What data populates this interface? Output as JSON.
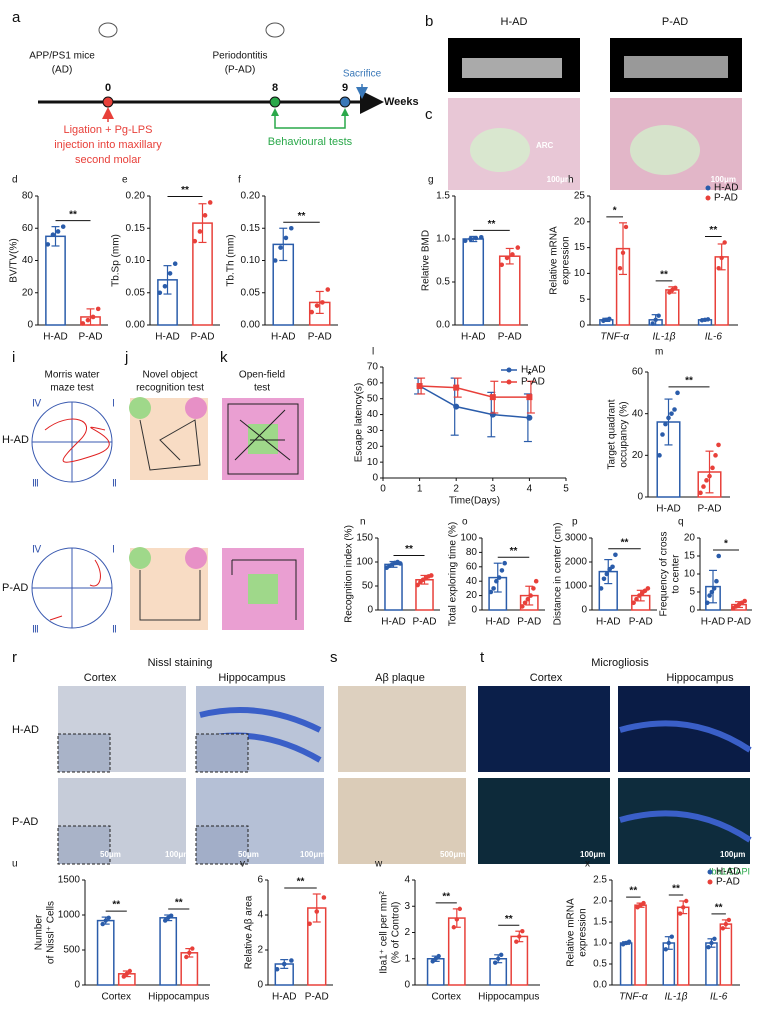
{
  "texts": [
    "a",
    "b",
    "c",
    "H-AD",
    "P-AD",
    "ARC",
    "100μm",
    "100μm",
    "APP/PS1 mice",
    "(AD)",
    "Periodontitis",
    "(P-AD)",
    "Sacrifice",
    "0",
    "8",
    "9",
    "Weeks",
    "Ligation + Pg-LPS",
    "injection into maxillary",
    "second molar",
    "Behavioural tests",
    "i",
    "j",
    "k",
    "Morris water",
    "maze test",
    "Novel object",
    "recognition test",
    "Open-field",
    "test",
    "H-AD",
    "P-AD",
    "r",
    "s",
    "t",
    "Nissl staining",
    "Cortex",
    "Hippocampus",
    "Aβ plaque",
    "Microgliosis",
    "Cortex",
    "Hippocampus",
    "H-AD",
    "P-AD",
    "50μm",
    "100μm",
    "50μm",
    "100μm",
    "500μm",
    "100μm",
    "100μm",
    "Iba1/DAPI",
    "Ⅳ",
    "Ⅰ",
    "Ⅲ",
    "Ⅱ",
    "Ⅳ",
    "Ⅰ",
    "Ⅲ",
    "Ⅱ"
  ],
  "chart_data": [
    {
      "type": "bar",
      "letter": "d",
      "ylabel": [
        "BV/TV(%)"
      ],
      "categories": [
        "H-AD",
        "P-AD"
      ],
      "colors": [
        "#2a5caa",
        "#e8403a"
      ],
      "values": [
        55,
        5
      ],
      "errors": [
        6,
        5
      ],
      "points": [
        [
          50,
          56,
          58,
          61
        ],
        [
          1,
          3,
          5,
          10
        ]
      ],
      "ylim": [
        0,
        80
      ],
      "yticks": [
        0,
        20,
        40,
        60,
        80
      ],
      "significance": [
        "**"
      ]
    },
    {
      "type": "bar",
      "letter": "e",
      "ylabel": [
        "Tb.Sp (mm)"
      ],
      "categories": [
        "H-AD",
        "P-AD"
      ],
      "colors": [
        "#2a5caa",
        "#e8403a"
      ],
      "values": [
        0.07,
        0.158
      ],
      "errors": [
        0.022,
        0.03
      ],
      "points": [
        [
          0.05,
          0.06,
          0.08,
          0.095
        ],
        [
          0.13,
          0.145,
          0.17,
          0.19
        ]
      ],
      "ylim": [
        0,
        0.2
      ],
      "yticks": [
        {
          "value": 0,
          "label": "0.00"
        },
        0.05,
        {
          "value": 0.1,
          "label": "0.10"
        },
        0.15,
        {
          "value": 0.2,
          "label": "0.20"
        }
      ],
      "significance": [
        "**"
      ]
    },
    {
      "type": "bar",
      "letter": "f",
      "ylabel": [
        "Tb.Th (mm)"
      ],
      "categories": [
        "H-AD",
        "P-AD"
      ],
      "colors": [
        "#2a5caa",
        "#e8403a"
      ],
      "values": [
        0.125,
        0.035
      ],
      "errors": [
        0.025,
        0.017
      ],
      "points": [
        [
          0.1,
          0.12,
          0.135,
          0.15
        ],
        [
          0.02,
          0.03,
          0.035,
          0.055
        ]
      ],
      "ylim": [
        0,
        0.2
      ],
      "yticks": [
        {
          "value": 0,
          "label": "0.00"
        },
        0.05,
        {
          "value": 0.1,
          "label": "0.10"
        },
        0.15,
        {
          "value": 0.2,
          "label": "0.20"
        }
      ],
      "significance": [
        "**"
      ]
    },
    {
      "type": "bar",
      "letter": "g",
      "ylabel": [
        "Relative BMD"
      ],
      "categories": [
        "H-AD",
        "P-AD"
      ],
      "colors": [
        "#2a5caa",
        "#e8403a"
      ],
      "values": [
        1.0,
        0.8
      ],
      "errors": [
        0.03,
        0.09
      ],
      "points": [
        [
          0.98,
          1.0,
          1.01,
          1.02
        ],
        [
          0.7,
          0.78,
          0.82,
          0.9
        ]
      ],
      "ylim": [
        0,
        1.5
      ],
      "yticks": [
        {
          "value": 0,
          "label": "0.0"
        },
        0.5,
        {
          "value": 1,
          "label": "1.0"
        },
        1.5
      ],
      "significance": [
        "**"
      ]
    },
    {
      "type": "grouped_bar",
      "letter": "h",
      "ylabel": [
        "Relative mRNA",
        "expression"
      ],
      "italic_categories": true,
      "categories": [
        "TNF-α",
        "IL-1β",
        "IL-6"
      ],
      "series": [
        {
          "name": "H-AD",
          "color": "#2a5caa",
          "values": [
            1,
            1,
            1
          ],
          "errors": [
            0.3,
            1.0,
            0.2
          ],
          "points": [
            [
              0.8,
              1,
              1.2
            ],
            [
              0.3,
              1,
              1.8
            ],
            [
              0.9,
              1,
              1.1
            ]
          ]
        },
        {
          "name": "P-AD",
          "color": "#e8403a",
          "values": [
            14.8,
            6.8,
            13.2
          ],
          "errors": [
            5,
            0.6,
            2.5
          ],
          "points": [
            [
              11,
              14,
              19
            ],
            [
              6.3,
              6.8,
              7.2
            ],
            [
              11,
              13,
              16
            ]
          ]
        }
      ],
      "ylim": [
        0,
        25
      ],
      "yticks": [
        0,
        5,
        10,
        15,
        20,
        25
      ],
      "significance": [
        "*",
        "**",
        "**"
      ],
      "legend": "top-right"
    },
    {
      "type": "line",
      "letter": "l",
      "ylabel": [
        "Escape latency(s)"
      ],
      "xlabel": "Time(Days)",
      "x": [
        1,
        2,
        3,
        4
      ],
      "series": [
        {
          "name": "H-AD",
          "color": "#2a5caa",
          "marker": "circle",
          "values": [
            58,
            45,
            40,
            38
          ],
          "errors": [
            5,
            18,
            14,
            15
          ]
        },
        {
          "name": "P-AD",
          "color": "#e8403a",
          "marker": "square",
          "values": [
            58,
            57,
            51,
            51
          ],
          "errors": [
            5,
            6,
            10,
            10
          ]
        }
      ],
      "xlim": [
        0,
        5
      ],
      "xticks": [
        0,
        1,
        2,
        3,
        4,
        5
      ],
      "ylim": [
        0,
        70
      ],
      "yticks": [
        0,
        10,
        20,
        30,
        40,
        50,
        60,
        70
      ],
      "annotations": [
        "*"
      ],
      "legend": "top-right"
    },
    {
      "type": "bar",
      "letter": "m",
      "ylabel": [
        "Target quadrant",
        "occupancy (%)"
      ],
      "categories": [
        "H-AD",
        "P-AD"
      ],
      "colors": [
        "#2a5caa",
        "#e8403a"
      ],
      "values": [
        36,
        12
      ],
      "errors": [
        11,
        10
      ],
      "points": [
        [
          20,
          30,
          35,
          38,
          40,
          42,
          50
        ],
        [
          2,
          5,
          8,
          10,
          14,
          20,
          25
        ]
      ],
      "ylim": [
        0,
        60
      ],
      "yticks": [
        0,
        20,
        40,
        60
      ],
      "significance": [
        "**"
      ]
    },
    {
      "type": "bar",
      "letter": "n",
      "ylabel": [
        "Recognition index (%)"
      ],
      "categories": [
        "H-AD",
        "P-AD"
      ],
      "colors": [
        "#2a5caa",
        "#e8403a"
      ],
      "values": [
        95,
        63
      ],
      "errors": [
        6,
        9
      ],
      "points": [
        [
          88,
          92,
          95,
          98,
          100,
          97
        ],
        [
          52,
          58,
          63,
          66,
          70,
          72
        ]
      ],
      "ylim": [
        0,
        150
      ],
      "yticks": [
        0,
        50,
        100,
        150
      ],
      "significance": [
        "**"
      ]
    },
    {
      "type": "bar",
      "letter": "o",
      "ylabel": [
        "Total exploring time (%)"
      ],
      "categories": [
        "H-AD",
        "P-AD"
      ],
      "colors": [
        "#2a5caa",
        "#e8403a"
      ],
      "values": [
        45,
        20
      ],
      "errors": [
        20,
        13
      ],
      "points": [
        [
          25,
          30,
          40,
          45,
          55,
          65
        ],
        [
          5,
          10,
          15,
          20,
          30,
          40
        ]
      ],
      "ylim": [
        0,
        100
      ],
      "yticks": [
        0,
        20,
        40,
        60,
        80,
        100
      ],
      "significance": [
        "**"
      ]
    },
    {
      "type": "bar",
      "letter": "p",
      "ylabel": [
        "Distance in center (cm)"
      ],
      "categories": [
        "H-AD",
        "P-AD"
      ],
      "colors": [
        "#2a5caa",
        "#e8403a"
      ],
      "values": [
        1600,
        600
      ],
      "errors": [
        500,
        220
      ],
      "points": [
        [
          900,
          1300,
          1500,
          1700,
          1800,
          2300
        ],
        [
          300,
          450,
          600,
          700,
          800,
          900
        ]
      ],
      "ylim": [
        0,
        3000
      ],
      "yticks": [
        0,
        1000,
        2000,
        3000
      ],
      "significance": [
        "**"
      ]
    },
    {
      "type": "bar",
      "letter": "q",
      "ylabel": [
        "Frequency of cross",
        "to center"
      ],
      "categories": [
        "H-AD",
        "P-AD"
      ],
      "colors": [
        "#2a5caa",
        "#e8403a"
      ],
      "values": [
        6.5,
        1.5
      ],
      "errors": [
        4.5,
        0.8
      ],
      "points": [
        [
          2,
          4,
          5,
          6,
          8,
          15
        ],
        [
          0.5,
          1,
          1.5,
          2,
          2.5
        ]
      ],
      "ylim": [
        0,
        20
      ],
      "yticks": [
        0,
        5,
        10,
        15,
        20
      ],
      "significance": [
        "*"
      ]
    },
    {
      "type": "grouped_bar",
      "letter": "u",
      "ylabel": [
        "Number",
        "of Nissl⁺ Cells"
      ],
      "categories": [
        "Cortex",
        "Hippocampus"
      ],
      "series": [
        {
          "name": "H-AD",
          "color": "#2a5caa",
          "values": [
            920,
            960
          ],
          "errors": [
            50,
            40
          ],
          "points": [
            [
              870,
              920,
              960
            ],
            [
              920,
              960,
              990
            ]
          ]
        },
        {
          "name": "P-AD",
          "color": "#e8403a",
          "values": [
            160,
            460
          ],
          "errors": [
            40,
            60
          ],
          "points": [
            [
              120,
              160,
              200
            ],
            [
              400,
              460,
              520
            ]
          ]
        }
      ],
      "ylim": [
        0,
        1500
      ],
      "yticks": [
        0,
        500,
        1000,
        1500
      ],
      "significance": [
        "**",
        "**"
      ]
    },
    {
      "type": "bar",
      "letter": "v",
      "ylabel": [
        "Relative Aβ area"
      ],
      "categories": [
        "H-AD",
        "P-AD"
      ],
      "colors": [
        "#2a5caa",
        "#e8403a"
      ],
      "values": [
        1.2,
        4.4
      ],
      "errors": [
        0.25,
        0.8
      ],
      "points": [
        [
          0.9,
          1.2,
          1.4
        ],
        [
          3.5,
          4.2,
          5.0
        ]
      ],
      "ylim": [
        0,
        6
      ],
      "yticks": [
        0,
        2,
        4,
        6
      ],
      "significance": [
        "**"
      ]
    },
    {
      "type": "grouped_bar",
      "letter": "w",
      "ylabel": [
        "Iba1⁺ cell per mm²",
        "(% of Control)"
      ],
      "categories": [
        "Cortex",
        "Hippocampus"
      ],
      "series": [
        {
          "name": "H-AD",
          "color": "#2a5caa",
          "values": [
            1.0,
            1.0
          ],
          "errors": [
            0.1,
            0.15
          ],
          "points": [
            [
              0.9,
              1,
              1.1
            ],
            [
              0.85,
              1,
              1.15
            ]
          ]
        },
        {
          "name": "P-AD",
          "color": "#e8403a",
          "values": [
            2.55,
            1.85
          ],
          "errors": [
            0.35,
            0.2
          ],
          "points": [
            [
              2.2,
              2.5,
              2.9
            ],
            [
              1.65,
              1.85,
              2.05
            ]
          ]
        }
      ],
      "ylim": [
        0,
        4
      ],
      "yticks": [
        0,
        1,
        2,
        3,
        4
      ],
      "significance": [
        "**",
        "**"
      ]
    },
    {
      "type": "grouped_bar",
      "letter": "x",
      "ylabel": [
        "Relative mRNA",
        "expression"
      ],
      "italic_categories": true,
      "categories": [
        "TNF-α",
        "IL-1β",
        "IL-6"
      ],
      "series": [
        {
          "name": "H-AD",
          "color": "#2a5caa",
          "values": [
            1,
            1,
            1
          ],
          "errors": [
            0.03,
            0.15,
            0.1
          ],
          "points": [
            [
              0.97,
              1,
              1.03
            ],
            [
              0.85,
              1,
              1.15
            ],
            [
              0.9,
              1,
              1.1
            ]
          ]
        },
        {
          "name": "P-AD",
          "color": "#e8403a",
          "values": [
            1.9,
            1.85,
            1.45
          ],
          "errors": [
            0.05,
            0.15,
            0.1
          ],
          "points": [
            [
              1.85,
              1.9,
              1.95
            ],
            [
              1.7,
              1.85,
              2.0
            ],
            [
              1.35,
              1.45,
              1.55
            ]
          ]
        }
      ],
      "ylim": [
        0,
        2.5
      ],
      "yticks": [
        {
          "value": 0,
          "label": "0.0"
        },
        0.5,
        {
          "value": 1,
          "label": "1.0"
        },
        1.5,
        {
          "value": 2,
          "label": "2.0"
        },
        2.5
      ],
      "significance": [
        "**",
        "**",
        "**"
      ],
      "legend": "top-right"
    }
  ]
}
